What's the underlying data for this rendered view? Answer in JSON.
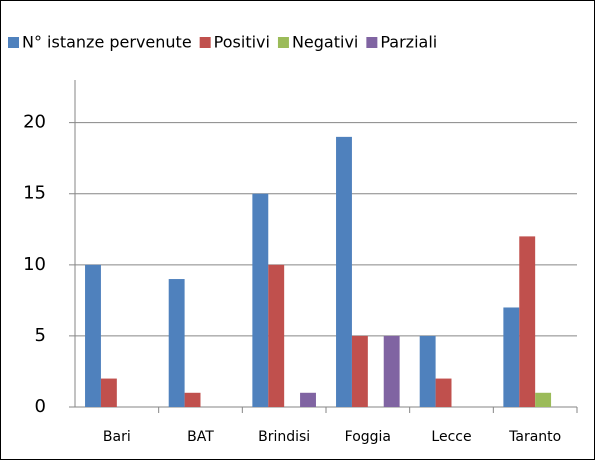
{
  "chart_data": {
    "type": "bar",
    "categories": [
      "Bari",
      "BAT",
      "Brindisi",
      "Foggia",
      "Lecce",
      "Taranto"
    ],
    "series": [
      {
        "name": "N° istanze pervenute",
        "color": "#4f81bd",
        "values": [
          10,
          9,
          15,
          19,
          5,
          7
        ]
      },
      {
        "name": "Positivi",
        "color": "#c0504d",
        "values": [
          2,
          1,
          10,
          5,
          2,
          12
        ]
      },
      {
        "name": "Negativi",
        "color": "#9bbb59",
        "values": [
          0,
          0,
          0,
          0,
          0,
          1
        ]
      },
      {
        "name": "Parziali",
        "color": "#8064a2",
        "values": [
          0,
          0,
          1,
          5,
          0,
          0
        ]
      }
    ],
    "ylim": [
      0,
      23
    ],
    "yticks": [
      0,
      5,
      10,
      15,
      20
    ],
    "grid": true,
    "legend": "top"
  }
}
